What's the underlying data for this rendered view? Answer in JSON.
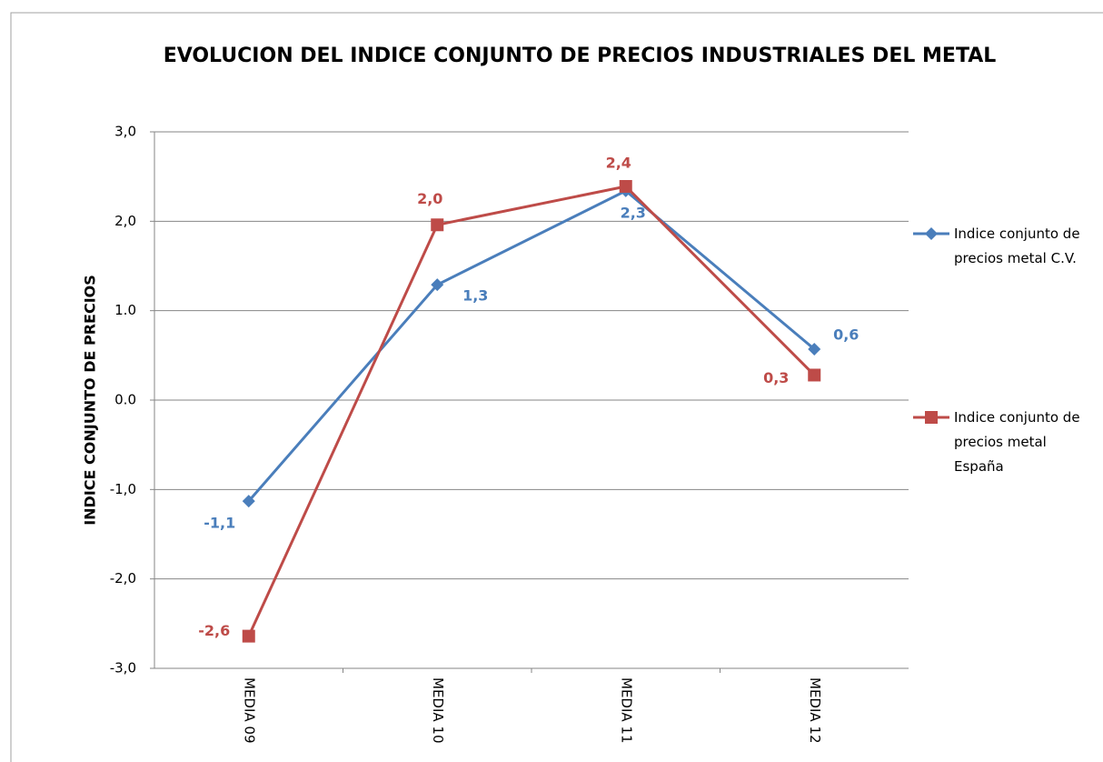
{
  "chart_data": {
    "type": "line",
    "title": "EVOLUCION  DEL INDICE CONJUNTO DE PRECIOS INDUSTRIALES DEL METAL",
    "y_label": "INDICE CONJUNTO DE PRECIOS",
    "categories": [
      "MEDIA 09",
      "MEDIA 10",
      "MEDIA 11",
      "MEDIA 12"
    ],
    "series": [
      {
        "name": "Indice conjunto de precios metal C.V.",
        "color": "#4a7ebb",
        "marker": "diamond",
        "values": [
          -1.13,
          1.29,
          2.34,
          0.57
        ],
        "value_labels": [
          "-1,1",
          "1,3",
          "2,3",
          "0,6"
        ]
      },
      {
        "name": "Indice conjunto de precios metal España",
        "color": "#be4b48",
        "marker": "square",
        "values": [
          -2.64,
          1.96,
          2.39,
          0.28
        ],
        "value_labels": [
          "-2,6",
          "2,0",
          "2,4",
          "0,3"
        ]
      }
    ],
    "ylim": [
      -3,
      3
    ],
    "yticks": [
      {
        "value": 3,
        "label": "3,0"
      },
      {
        "value": 2,
        "label": "2,0"
      },
      {
        "value": 1,
        "label": "1.0"
      },
      {
        "value": 0,
        "label": "0.0"
      },
      {
        "value": -1,
        "label": "-1,0"
      },
      {
        "value": -2,
        "label": "-2,0"
      },
      {
        "value": -3,
        "label": "-3,0"
      }
    ],
    "grid": true,
    "legend": "right"
  }
}
